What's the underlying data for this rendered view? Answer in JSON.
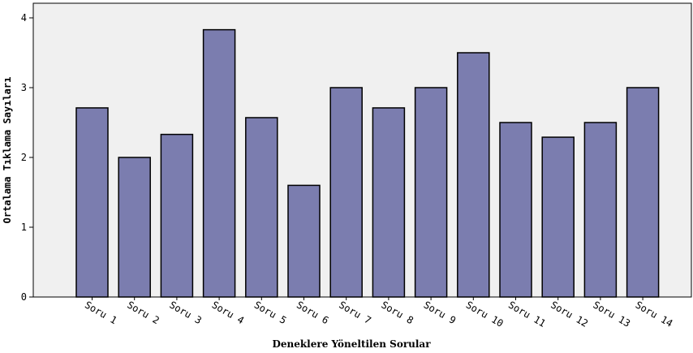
{
  "chart_data": {
    "type": "bar",
    "categories": [
      "Soru 1",
      "Soru 2",
      "Soru 3",
      "Soru 4",
      "Soru 5",
      "Soru 6",
      "Soru 7",
      "Soru 8",
      "Soru 9",
      "Soru 10",
      "Soru 11",
      "Soru 12",
      "Soru 13",
      "Soru 14"
    ],
    "values": [
      2.71,
      2.0,
      2.33,
      3.83,
      2.57,
      1.6,
      3.0,
      2.71,
      3.0,
      3.5,
      2.5,
      2.29,
      2.5,
      3.0
    ],
    "xlabel": "Deneklere Yöneltilen Sorular",
    "ylabel": "Ortalama Tıklama Sayıları",
    "ylim": [
      0,
      4
    ],
    "yticks": [
      "0",
      "1",
      "2",
      "3",
      "4"
    ],
    "grid": false,
    "colors": {
      "bar_fill": "#7b7daf",
      "bar_stroke": "#000000",
      "plot_background": "#f0f0f0"
    }
  }
}
